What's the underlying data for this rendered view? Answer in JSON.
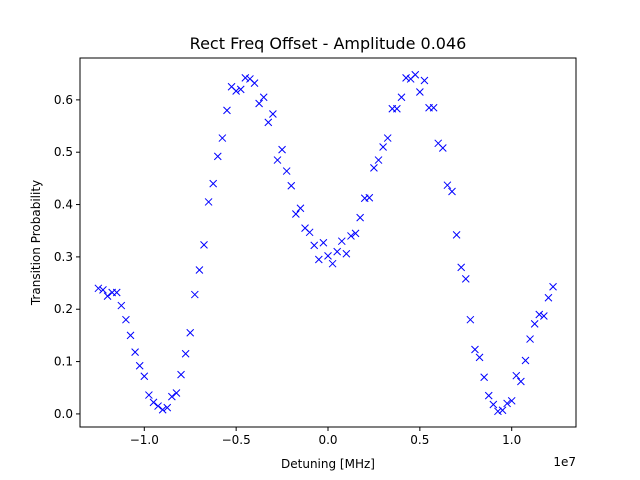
{
  "chart_data": {
    "type": "scatter",
    "title": "Rect Freq Offset - Amplitude 0.046",
    "xlabel": "Detuning [MHz]",
    "ylabel": "Transition Probability",
    "x_offset_text": "1e7",
    "xlim": [
      -13.5,
      13.5
    ],
    "ylim": [
      -0.025,
      0.68
    ],
    "x_ticks": [
      -10,
      -5,
      0,
      5,
      10
    ],
    "x_tick_labels": [
      "−1.0",
      "−0.5",
      "0.0",
      "0.5",
      "1.0"
    ],
    "y_ticks": [
      0.0,
      0.1,
      0.2,
      0.3,
      0.4,
      0.5,
      0.6
    ],
    "y_tick_labels": [
      "0.0",
      "0.1",
      "0.2",
      "0.3",
      "0.4",
      "0.5",
      "0.6"
    ],
    "grid": false,
    "marker": "x",
    "color": "#0000ff",
    "series": [
      {
        "x": [
          -12.5,
          -12.25,
          -12.0,
          -11.75,
          -11.5,
          -11.25,
          -11.0,
          -10.75,
          -10.5,
          -10.25,
          -10.0,
          -9.75,
          -9.5,
          -9.25,
          -9.0,
          -8.75,
          -8.5,
          -8.25,
          -8.0,
          -7.75,
          -7.5,
          -7.25,
          -7.0,
          -6.75,
          -6.5,
          -6.25,
          -6.0,
          -5.75,
          -5.5,
          -5.25,
          -5.0,
          -4.75,
          -4.5,
          -4.25,
          -4.0,
          -3.75,
          -3.5,
          -3.25,
          -3.0,
          -2.75,
          -2.5,
          -2.25,
          -2.0,
          -1.75,
          -1.5,
          -1.25,
          -1.0,
          -0.75,
          -0.5,
          -0.25,
          0.0,
          0.25,
          0.5,
          0.75,
          1.0,
          1.25,
          1.5,
          1.75,
          2.0,
          2.25,
          2.5,
          2.75,
          3.0,
          3.25,
          3.5,
          3.75,
          4.0,
          4.25,
          4.5,
          4.75,
          5.0,
          5.25,
          5.5,
          5.75,
          6.0,
          6.25,
          6.5,
          6.75,
          7.0,
          7.25,
          7.5,
          7.75,
          8.0,
          8.25,
          8.5,
          8.75,
          9.0,
          9.25,
          9.5,
          9.75,
          10.0,
          10.25,
          10.5,
          10.75,
          11.0,
          11.25,
          11.5,
          11.75,
          12.0,
          12.25
        ],
        "y": [
          0.24,
          0.237,
          0.225,
          0.232,
          0.232,
          0.207,
          0.18,
          0.15,
          0.118,
          0.092,
          0.072,
          0.036,
          0.022,
          0.015,
          0.008,
          0.012,
          0.033,
          0.04,
          0.075,
          0.115,
          0.155,
          0.228,
          0.275,
          0.323,
          0.405,
          0.44,
          0.492,
          0.527,
          0.58,
          0.625,
          0.617,
          0.62,
          0.642,
          0.64,
          0.632,
          0.593,
          0.605,
          0.557,
          0.573,
          0.485,
          0.505,
          0.464,
          0.436,
          0.382,
          0.393,
          0.355,
          0.347,
          0.322,
          0.295,
          0.327,
          0.302,
          0.287,
          0.31,
          0.33,
          0.306,
          0.34,
          0.345,
          0.375,
          0.412,
          0.413,
          0.47,
          0.485,
          0.51,
          0.527,
          0.583,
          0.583,
          0.605,
          0.642,
          0.64,
          0.648,
          0.615,
          0.637,
          0.585,
          0.585,
          0.517,
          0.508,
          0.437,
          0.425,
          0.342,
          0.28,
          0.258,
          0.18,
          0.123,
          0.108,
          0.07,
          0.035,
          0.018,
          0.005,
          0.007,
          0.02,
          0.025,
          0.073,
          0.062,
          0.102,
          0.143,
          0.172,
          0.19,
          0.187,
          0.222,
          0.243
        ]
      }
    ]
  }
}
